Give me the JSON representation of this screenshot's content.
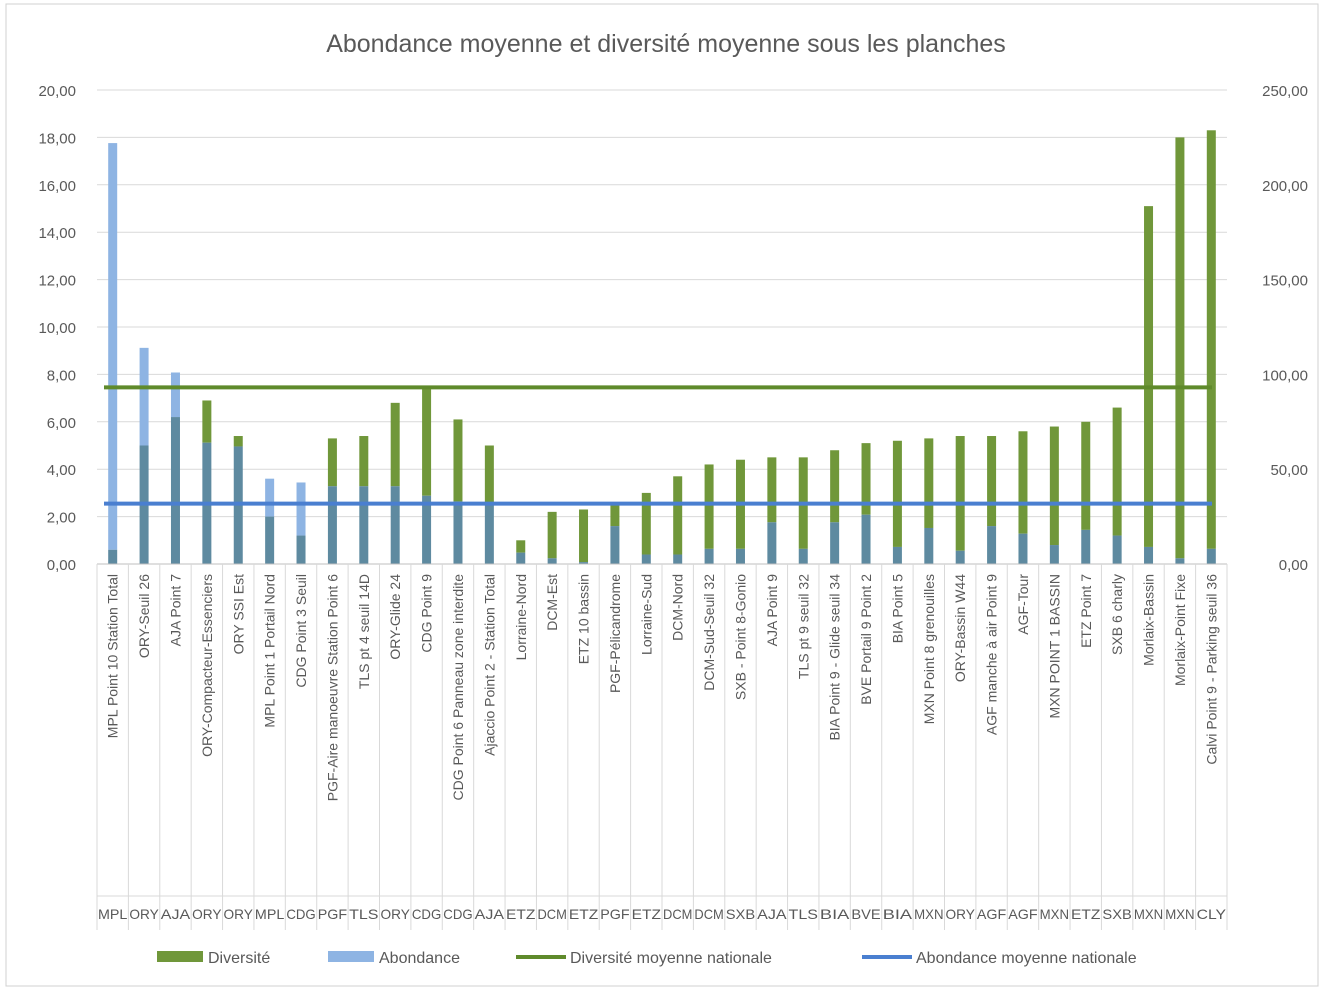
{
  "chart_data": {
    "type": "bar",
    "title": "Abondance moyenne et diversité moyenne sous les planches",
    "xlabel": "",
    "ylabel": "",
    "ylim": [
      0,
      20
    ],
    "ylim_right": [
      0,
      250
    ],
    "yticks_left": [
      "0,00",
      "2,00",
      "4,00",
      "6,00",
      "8,00",
      "10,00",
      "12,00",
      "14,00",
      "16,00",
      "18,00",
      "20,00"
    ],
    "yticks_right": [
      "0,00",
      "50,00",
      "100,00",
      "150,00",
      "200,00",
      "250,00"
    ],
    "grid": true,
    "legend_position": "bottom",
    "categories": [
      "MPL Point 10 Station Total",
      "ORY-Seuil 26",
      "AJA Point 7",
      "ORY-Compacteur-Essenciers",
      "ORY SSI Est",
      "MPL Point 1 Portail Nord",
      "CDG Point 3 Seuil",
      "PGF-Aire manoeuvre Station Point 6",
      "TLS pt 4 seuil 14D",
      "ORY-Glide 24",
      "CDG Point 9",
      "CDG Point 6 Panneau zone interdite",
      "Ajaccio Point 2 - Station Total",
      "Lorraine-Nord",
      "DCM-Est",
      "ETZ 10 bassin",
      "PGF-Pélicandrome",
      "Lorraine-Sud",
      "DCM-Nord",
      "DCM-Sud-Seuil 32",
      "SXB - Point 8-Gonio",
      "AJA Point 9",
      "TLS pt 9 seuil 32",
      "BIA Point 9 - Glide seuil 34",
      "BVE Portail 9 Point 2",
      "BIA Point 5",
      "MXN Point 8 grenouilles",
      "ORY-Bassin W44",
      "AGF manche à air Point 9",
      "AGF-Tour",
      "MXN POINT 1 BASSIN",
      "ETZ Point 7",
      "SXB 6 charly",
      "Morlaix-Bassin",
      "Morlaix-Point Fixe",
      "Calvi Point 9 - Parking seuil 36"
    ],
    "secondary_labels": [
      "MPL",
      "ORY",
      "AJA",
      "ORY",
      "ORY",
      "MPL",
      "CDG",
      "PGF",
      "TLS",
      "ORY",
      "CDG",
      "CDG",
      "AJA",
      "ETZ",
      "DCM",
      "ETZ",
      "PGF",
      "ETZ",
      "DCM",
      "DCM",
      "SXB",
      "AJA",
      "TLS",
      "BIA",
      "BVE",
      "BIA",
      "MXN",
      "ORY",
      "AGF",
      "AGF",
      "MXN",
      "ETZ",
      "SXB",
      "MXN",
      "MXN",
      "CLY"
    ],
    "series": [
      {
        "name": "Diversité",
        "axis": "left",
        "values": [
          0.6,
          5.0,
          6.2,
          6.9,
          5.4,
          2.0,
          1.2,
          5.3,
          5.4,
          6.8,
          7.5,
          6.1,
          5.0,
          1.0,
          2.2,
          2.3,
          2.5,
          3.0,
          3.7,
          4.2,
          4.4,
          4.5,
          4.5,
          4.8,
          5.1,
          5.2,
          5.3,
          5.4,
          5.4,
          5.6,
          5.8,
          6.0,
          6.6,
          15.1,
          18.0,
          18.3
        ]
      },
      {
        "name": "Abondance",
        "axis": "right",
        "values": [
          222,
          114,
          101,
          64,
          62,
          45,
          43,
          41,
          41,
          41,
          36,
          33,
          32,
          6,
          3,
          1,
          20,
          5,
          5,
          8,
          8,
          22,
          8,
          22,
          26,
          9,
          19,
          7,
          20,
          16,
          10,
          18,
          15,
          9,
          3,
          8
        ]
      },
      {
        "name": "Diversité moyenne nationale",
        "axis": "left",
        "type": "line",
        "value": 7.45
      },
      {
        "name": "Abondance moyenne nationale",
        "axis": "left",
        "type": "line",
        "value": 2.55
      }
    ],
    "colors": {
      "diversite": "#70973a",
      "abondance": "#8eb4e3",
      "overlap": "#5e8aa0",
      "diversite_line": "#5f8a2b",
      "abondance_line": "#4a7fd0",
      "axis_text": "#595959",
      "grid": "#d9d9d9"
    }
  }
}
